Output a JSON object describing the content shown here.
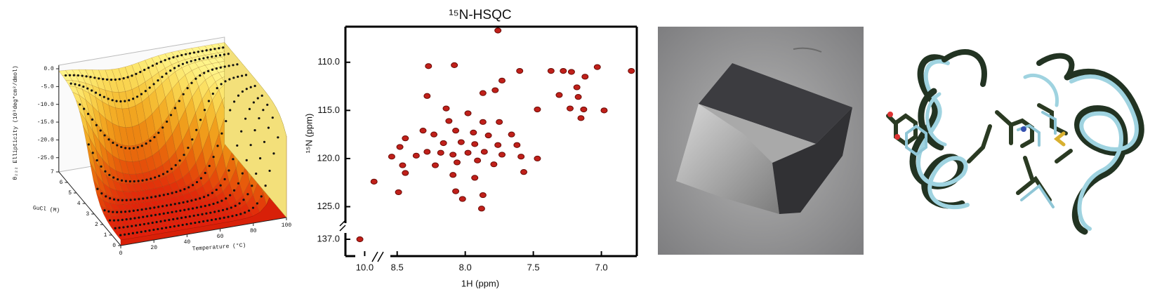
{
  "chart_data": [
    {
      "type": "surface3d",
      "zlabel": "θ₂₂₂ Ellipticity (10³deg*cm²/dmol)",
      "ylabel": "GuCl (M)",
      "xlabel": "Temperature (°C)",
      "xlim": [
        0,
        100
      ],
      "xticks": [
        0,
        20,
        40,
        60,
        80,
        100
      ],
      "ylim": [
        0,
        7
      ],
      "yticks": [
        0,
        1,
        2,
        3,
        4,
        5,
        6,
        7
      ],
      "zlim": [
        -29,
        1
      ],
      "zticks": [
        {
          "value": 0,
          "label": "0.0"
        },
        {
          "value": -5,
          "label": "-5.0"
        },
        {
          "value": -10,
          "label": "-10.0"
        },
        {
          "value": -15,
          "label": "-15.0"
        },
        {
          "value": -20,
          "label": "-20.0"
        },
        {
          "value": -25,
          "label": "-25.0"
        }
      ]
    },
    {
      "type": "scatter",
      "title": "¹⁵N-HSQC",
      "xlabel": "1H (ppm)",
      "ylabel": "¹⁵N (ppm)",
      "color": "#c0201a",
      "xlim": [
        8.88,
        6.74
      ],
      "ylim": [
        126.2,
        106.3
      ],
      "xticks": [
        {
          "value": 8.5,
          "label": "8.5"
        },
        {
          "value": 8,
          "label": "8.0"
        },
        {
          "value": 7.5,
          "label": "7.5"
        },
        {
          "value": 7,
          "label": "7.0"
        }
      ],
      "yticks": [
        {
          "value": 110,
          "label": "110.0"
        },
        {
          "value": 115,
          "label": "115.0"
        },
        {
          "value": 120,
          "label": "120.0"
        },
        {
          "value": 125,
          "label": "125.0"
        }
      ],
      "xlim_break": [
        10.2,
        9.85
      ],
      "ylim_break": [
        138.2,
        135.2
      ],
      "xticks_break": [
        {
          "value": 10,
          "label": "10.0"
        }
      ],
      "yticks_break": [
        {
          "value": 137,
          "label": "137.0"
        }
      ],
      "x": [
        7.76,
        8.27,
        8.08,
        7.6,
        7.37,
        7.28,
        7.22,
        7.12,
        7.03,
        6.78,
        7.73,
        7.87,
        7.78,
        7.18,
        7.31,
        7.17,
        8.28,
        8.14,
        7.98,
        7.47,
        7.23,
        7.13,
        6.98,
        7.15,
        8.12,
        7.87,
        7.75,
        8.31,
        8.23,
        8.07,
        7.94,
        7.83,
        7.66,
        8.44,
        8.16,
        8.03,
        7.93,
        7.76,
        7.62,
        8.48,
        8.28,
        8.18,
        8.09,
        7.98,
        7.86,
        7.73,
        7.59,
        7.47,
        8.54,
        8.36,
        8.46,
        8.22,
        8.06,
        7.91,
        7.79,
        7.57,
        8.44,
        8.09,
        7.93,
        8.67,
        8.49,
        8.07,
        7.87,
        8.02,
        7.88
      ],
      "y": [
        106.7,
        110.4,
        110.3,
        110.9,
        110.9,
        110.9,
        111.0,
        111.5,
        110.5,
        110.9,
        111.9,
        113.2,
        112.9,
        112.6,
        113.4,
        113.6,
        113.5,
        114.8,
        115.3,
        114.9,
        114.8,
        114.9,
        115.0,
        115.8,
        116.1,
        116.2,
        116.2,
        117.1,
        117.5,
        117.1,
        117.3,
        117.6,
        117.5,
        117.9,
        118.4,
        118.3,
        118.5,
        118.6,
        118.6,
        118.8,
        119.3,
        119.4,
        119.6,
        119.4,
        119.3,
        119.6,
        119.8,
        120.0,
        119.8,
        119.7,
        120.7,
        120.7,
        120.4,
        120.2,
        120.6,
        121.4,
        121.5,
        121.7,
        122.0,
        122.4,
        123.5,
        123.4,
        123.8,
        124.2,
        125.2
      ],
      "break_x": [
        10.05
      ],
      "break_y": [
        137.0
      ]
    }
  ]
}
